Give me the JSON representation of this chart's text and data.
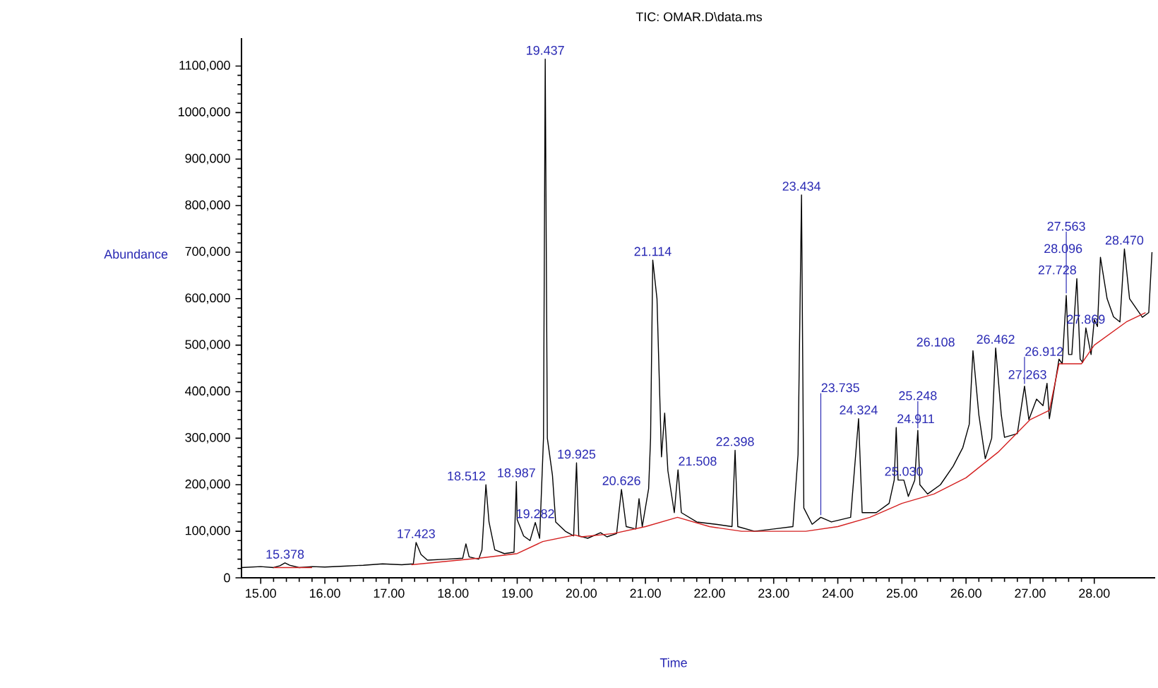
{
  "chart_data": {
    "type": "line",
    "title": "TIC: OMAR.D\\data.ms",
    "xlabel": "Time",
    "ylabel": "Abundance",
    "xlim": [
      14.7,
      28.95
    ],
    "ylim": [
      0,
      1160000
    ],
    "xticks": [
      {
        "value": 15,
        "label": "15.00"
      },
      {
        "value": 16,
        "label": "16.00"
      },
      {
        "value": 17,
        "label": "17.00"
      },
      {
        "value": 18,
        "label": "18.00"
      },
      {
        "value": 19,
        "label": "19.00"
      },
      {
        "value": 20,
        "label": "20.00"
      },
      {
        "value": 21,
        "label": "21.00"
      },
      {
        "value": 22,
        "label": "22.00"
      },
      {
        "value": 23,
        "label": "23.00"
      },
      {
        "value": 24,
        "label": "24.00"
      },
      {
        "value": 25,
        "label": "25.00"
      },
      {
        "value": 26,
        "label": "26.00"
      },
      {
        "value": 27,
        "label": "27.00"
      },
      {
        "value": 28,
        "label": "28.00"
      }
    ],
    "yticks": [
      0,
      {
        "value": 100000,
        "label": "100,000"
      },
      {
        "value": 200000,
        "label": "200,000"
      },
      {
        "value": 300000,
        "label": "300,000"
      },
      {
        "value": 400000,
        "label": "400,000"
      },
      {
        "value": 500000,
        "label": "500,000"
      },
      {
        "value": 600000,
        "label": "600,000"
      },
      {
        "value": 700000,
        "label": "700,000"
      },
      {
        "value": 800000,
        "label": "800,000"
      },
      {
        "value": 900000,
        "label": "900,000"
      },
      {
        "value": 1000000,
        "label": "1000,000"
      },
      {
        "value": 1100000,
        "label": "1100,000"
      }
    ],
    "grid": false,
    "marker": "none",
    "series": [
      {
        "color": "#000000",
        "x": [
          14.7,
          15.0,
          15.2,
          15.3,
          15.378,
          15.45,
          15.6,
          15.8,
          16.0,
          16.3,
          16.6,
          16.9,
          17.2,
          17.38,
          17.423,
          17.5,
          17.6,
          17.9,
          18.15,
          18.2,
          18.25,
          18.4,
          18.45,
          18.512,
          18.56,
          18.65,
          18.8,
          18.95,
          18.987,
          19.0,
          19.1,
          19.2,
          19.282,
          19.35,
          19.41,
          19.437,
          19.47,
          19.55,
          19.6,
          19.75,
          19.88,
          19.925,
          19.96,
          20.1,
          20.3,
          20.4,
          20.55,
          20.626,
          20.7,
          20.85,
          20.9,
          20.95,
          21.05,
          21.08,
          21.114,
          21.18,
          21.25,
          21.3,
          21.35,
          21.45,
          21.508,
          21.56,
          21.8,
          22.1,
          22.35,
          22.398,
          22.44,
          22.7,
          23.0,
          23.3,
          23.38,
          23.434,
          23.47,
          23.6,
          23.735,
          23.9,
          24.2,
          24.324,
          24.38,
          24.6,
          24.8,
          24.88,
          24.911,
          24.94,
          25.03,
          25.1,
          25.2,
          25.248,
          25.28,
          25.4,
          25.6,
          25.8,
          25.95,
          26.05,
          26.108,
          26.2,
          26.3,
          26.4,
          26.462,
          26.55,
          26.6,
          26.8,
          26.912,
          26.98,
          27.1,
          27.2,
          27.263,
          27.3,
          27.45,
          27.5,
          27.563,
          27.6,
          27.65,
          27.728,
          27.78,
          27.82,
          27.869,
          27.95,
          28.0,
          28.05,
          28.096,
          28.2,
          28.3,
          28.4,
          28.47,
          28.55,
          28.75,
          28.85,
          28.9
        ],
        "values": [
          22000,
          24000,
          22000,
          26000,
          32000,
          27000,
          22000,
          24000,
          23000,
          25000,
          27000,
          30000,
          28000,
          30000,
          76000,
          50000,
          38000,
          40000,
          42000,
          73000,
          45000,
          40000,
          60000,
          200000,
          120000,
          60000,
          52000,
          55000,
          207000,
          125000,
          90000,
          80000,
          119000,
          85000,
          300000,
          1115000,
          300000,
          220000,
          120000,
          100000,
          90000,
          247000,
          90000,
          85000,
          97000,
          88000,
          95000,
          190000,
          110000,
          105000,
          170000,
          110000,
          192000,
          300000,
          683000,
          600000,
          260000,
          354000,
          230000,
          140000,
          232000,
          140000,
          120000,
          115000,
          110000,
          274000,
          110000,
          100000,
          105000,
          110000,
          265000,
          823000,
          150000,
          115000,
          130000,
          120000,
          130000,
          342000,
          140000,
          140000,
          160000,
          210000,
          323000,
          210000,
          210000,
          175000,
          210000,
          317000,
          200000,
          180000,
          200000,
          240000,
          280000,
          330000,
          488000,
          350000,
          256000,
          300000,
          494000,
          350000,
          302000,
          310000,
          412000,
          340000,
          384000,
          370000,
          418000,
          342000,
          470000,
          460000,
          607000,
          480000,
          480000,
          643000,
          470000,
          463000,
          537000,
          480000,
          555000,
          540000,
          689000,
          600000,
          561000,
          550000,
          707000,
          600000,
          560000,
          570000,
          700000
        ]
      },
      {
        "color": "#d42020",
        "x": [
          15.2,
          15.8,
          15.9,
          17.35,
          18.4,
          19.0,
          19.4,
          19.9,
          20.0,
          20.5,
          21.0,
          21.5,
          22.0,
          22.5,
          23.0,
          23.5,
          24.0,
          24.5,
          25.0,
          25.5,
          26.0,
          26.5,
          27.0,
          27.3,
          27.45,
          27.8,
          28.0,
          28.5,
          28.8
        ],
        "values": [
          22000,
          22000,
          null,
          28000,
          42000,
          52000,
          78000,
          92000,
          88000,
          95000,
          110000,
          130000,
          110000,
          100000,
          100000,
          100000,
          110000,
          130000,
          160000,
          180000,
          215000,
          270000,
          340000,
          360000,
          460000,
          460000,
          500000,
          550000,
          570000
        ]
      }
    ],
    "annotations": [
      {
        "text": "15.378",
        "x": 15.378,
        "y": 32000
      },
      {
        "text": "17.423",
        "x": 17.423,
        "y": 76000
      },
      {
        "text": "18.512",
        "x": 18.512,
        "y": 200000
      },
      {
        "text": "18.987",
        "x": 18.987,
        "y": 207000
      },
      {
        "text": "19.282",
        "x": 19.282,
        "y": 119000
      },
      {
        "text": "19.437",
        "x": 19.437,
        "y": 1115000
      },
      {
        "text": "19.925",
        "x": 19.925,
        "y": 247000
      },
      {
        "text": "20.626",
        "x": 20.626,
        "y": 190000
      },
      {
        "text": "21.114",
        "x": 21.114,
        "y": 683000
      },
      {
        "text": "21.508",
        "x": 21.508,
        "y": 232000
      },
      {
        "text": "22.398",
        "x": 22.398,
        "y": 274000
      },
      {
        "text": "23.434",
        "x": 23.434,
        "y": 823000
      },
      {
        "text": "23.735",
        "x": 23.735,
        "y": 130000
      },
      {
        "text": "24.324",
        "x": 24.324,
        "y": 342000
      },
      {
        "text": "24.911",
        "x": 24.911,
        "y": 323000
      },
      {
        "text": "25.030",
        "x": 25.03,
        "y": 210000
      },
      {
        "text": "25.248",
        "x": 25.248,
        "y": 317000
      },
      {
        "text": "26.108",
        "x": 26.108,
        "y": 488000
      },
      {
        "text": "26.462",
        "x": 26.462,
        "y": 494000
      },
      {
        "text": "26.912",
        "x": 26.912,
        "y": 412000
      },
      {
        "text": "27.263",
        "x": 27.263,
        "y": 418000
      },
      {
        "text": "27.563",
        "x": 27.563,
        "y": 607000
      },
      {
        "text": "27.728",
        "x": 27.728,
        "y": 643000
      },
      {
        "text": "27.869",
        "x": 27.869,
        "y": 537000
      },
      {
        "text": "28.096",
        "x": 28.096,
        "y": 689000
      },
      {
        "text": "28.470",
        "x": 28.47,
        "y": 707000
      }
    ]
  }
}
